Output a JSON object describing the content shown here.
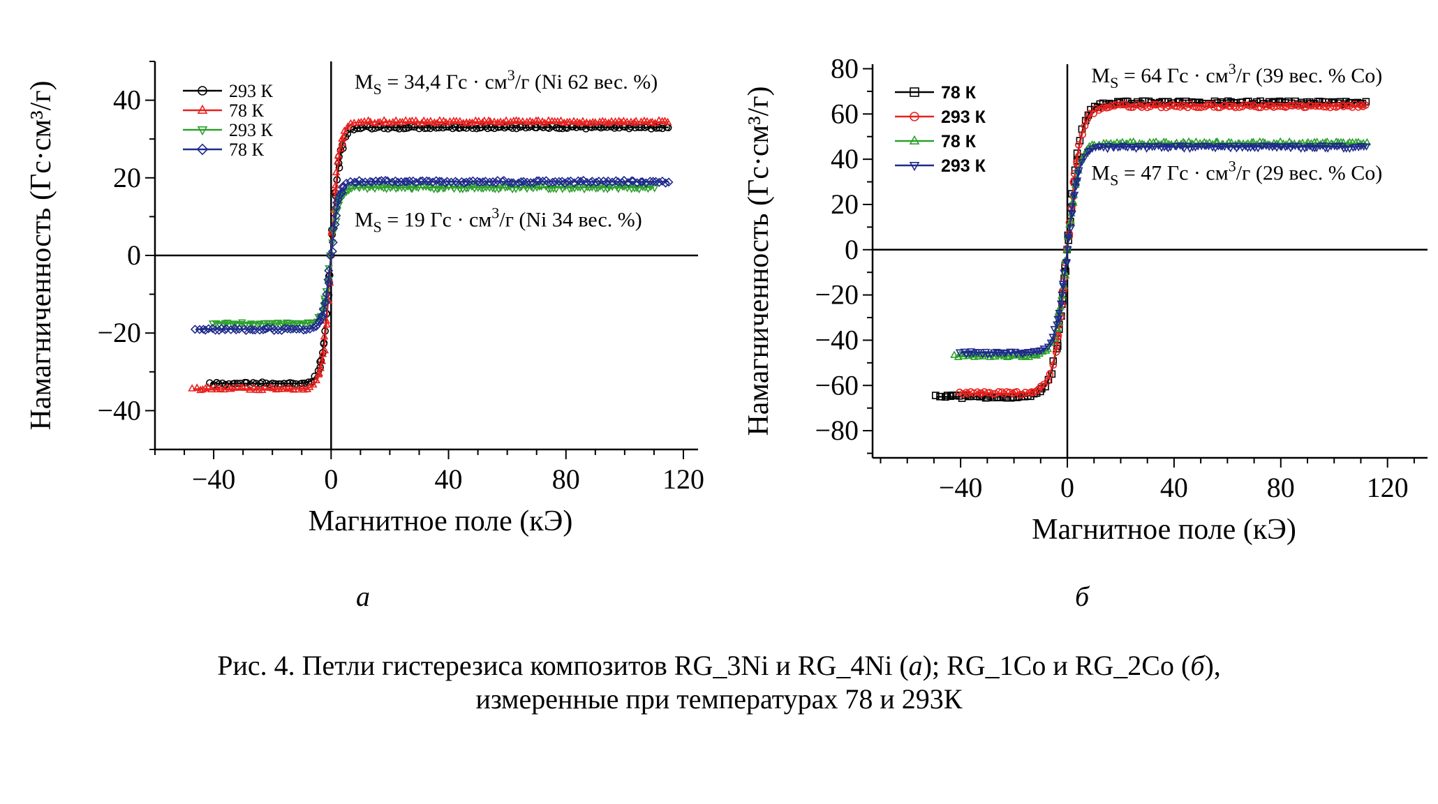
{
  "chart_data": [
    {
      "type": "scatter",
      "panel_label": "а",
      "xlabel": "Магнитное поле (кЭ)",
      "ylabel": "Намагниченность (Гс·см³/г)",
      "xlim": [
        -60,
        125
      ],
      "ylim": [
        -50,
        50
      ],
      "xticks": [
        -40,
        0,
        40,
        80,
        120
      ],
      "yticks": [
        -40,
        -20,
        0,
        20,
        40
      ],
      "xtick_labels": [
        "−40",
        "0",
        "40",
        "80",
        "120"
      ],
      "ytick_labels": [
        "−40",
        "−20",
        "0",
        "20",
        "40"
      ],
      "grid": false,
      "legend_position": "top-left",
      "annotations": [
        {
          "main": "M",
          "sub": "S",
          "rest": " = 34,4 Гс · см",
          "sup": "3",
          "tail": "/г  (Ni 62 вес. %)",
          "x": 8,
          "y": 43
        },
        {
          "main": "M",
          "sub": "S",
          "rest": " = 19 Гс · см",
          "sup": "3",
          "tail": "/г  (Ni 34 вес. %)",
          "x": 8,
          "y": 7.5
        }
      ],
      "series": [
        {
          "name": "293 К",
          "color": "#000000",
          "marker": "circle",
          "ms": 33,
          "xmin": -41,
          "xmax": 115,
          "k": 3.0
        },
        {
          "name": "78 К",
          "color": "#e8211e",
          "marker": "triangle-up",
          "ms": 34.4,
          "xmin": -47,
          "xmax": 115,
          "k": 2.8
        },
        {
          "name": "293 К",
          "color": "#2ca02c",
          "marker": "triangle-down",
          "ms": 17.5,
          "xmin": -40,
          "xmax": 110,
          "k": 2.6
        },
        {
          "name": "78 К",
          "color": "#1f2a8c",
          "marker": "diamond",
          "ms": 19,
          "xmin": -46,
          "xmax": 115,
          "k": 2.6
        }
      ]
    },
    {
      "type": "scatter",
      "panel_label": "б",
      "xlabel": "Магнитное поле (кЭ)",
      "ylabel": "Намагниченность (Гс·см³/г)",
      "xlim": [
        -73,
        135
      ],
      "ylim": [
        -92,
        82
      ],
      "xticks": [
        -40,
        0,
        40,
        80,
        120
      ],
      "yticks": [
        -80,
        -60,
        -40,
        -20,
        0,
        20,
        40,
        60,
        80
      ],
      "xtick_labels": [
        "−40",
        "0",
        "40",
        "80",
        "120"
      ],
      "ytick_labels": [
        "−80",
        "−60",
        "−40",
        "−20",
        "0",
        "20",
        "40",
        "60",
        "80"
      ],
      "grid": false,
      "legend_position": "top-left",
      "annotations": [
        {
          "main": "M",
          "sub": "S",
          "rest": " = 64 Гс · см",
          "sup": "3",
          "tail": "/г  (39 вес. % Co)",
          "x": 9,
          "y": 74
        },
        {
          "main": "M",
          "sub": "S",
          "rest": " = 47 Гс · см",
          "sup": "3",
          "tail": "/г  (29 вес. % Co)",
          "x": 9,
          "y": 31
        }
      ],
      "series": [
        {
          "name": "78 К",
          "color": "#000000",
          "marker": "square",
          "ms": 65,
          "xmin": -49,
          "xmax": 112,
          "k": 5.0
        },
        {
          "name": "293 К",
          "color": "#e8211e",
          "marker": "circle",
          "ms": 63.5,
          "xmin": -40,
          "xmax": 112,
          "k": 5.0
        },
        {
          "name": "78 К",
          "color": "#2ca02c",
          "marker": "triangle-up",
          "ms": 47,
          "xmin": -42,
          "xmax": 112,
          "k": 4.3
        },
        {
          "name": "293 К",
          "color": "#1f2a8c",
          "marker": "triangle-down",
          "ms": 45.5,
          "xmin": -40,
          "xmax": 112,
          "k": 4.3
        }
      ]
    }
  ],
  "caption": {
    "line1_a": "Рис. 4. Петли гистерезиса композитов RG_3Ni и RG_4Ni (",
    "line1_b": "а",
    "line1_c": "); RG_1Co и RG_2Co (",
    "line1_d": "б",
    "line1_e": "),",
    "line2": "измеренные при температурах 78 и 293К"
  }
}
